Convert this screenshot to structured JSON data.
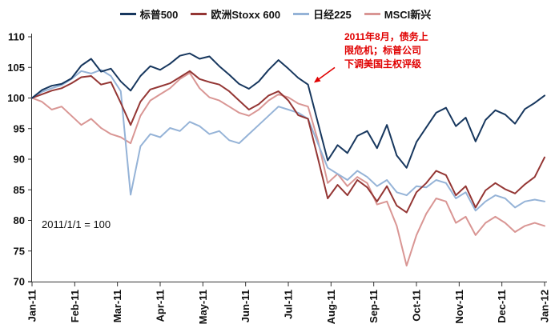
{
  "chart_data": {
    "type": "line",
    "title": "",
    "note": "2011/1/1 = 100",
    "ylim": [
      70,
      110
    ],
    "y_ticks": [
      70,
      75,
      80,
      85,
      90,
      95,
      100,
      105,
      110
    ],
    "x_tick_labels": [
      "Jan-11",
      "Feb-11",
      "Mar-11",
      "Apr-11",
      "May-11",
      "Jun-11",
      "Jul-11",
      "Aug-11",
      "Sep-11",
      "Oct-11",
      "Nov-11",
      "Dec-11",
      "Jan-12"
    ],
    "grid": "off",
    "legend_position": "top-center",
    "annotation": {
      "lines": [
        "2011年8月，债务上",
        "限危机；标普公司",
        "下调美国主权评级"
      ],
      "color": "#e00000",
      "arrow_target": {
        "x_index": 28.6,
        "value": 102.5
      }
    },
    "series": [
      {
        "name": "标普500",
        "color": "#17375e",
        "values": [
          100,
          101.3,
          102.0,
          102.3,
          103.2,
          105.3,
          106.4,
          104.3,
          104.8,
          102.7,
          101.2,
          103.6,
          105.2,
          104.6,
          105.6,
          106.9,
          107.3,
          106.4,
          106.8,
          105.2,
          103.8,
          102.3,
          101.5,
          102.7,
          104.6,
          106.2,
          104.8,
          103.3,
          102.2,
          96.0,
          89.8,
          92.3,
          91.0,
          93.8,
          94.6,
          91.8,
          95.6,
          90.6,
          88.6,
          92.8,
          95.2,
          97.6,
          98.4,
          95.4,
          96.8,
          92.9,
          96.4,
          98.0,
          97.3,
          95.8,
          98.2,
          99.2,
          100.4
        ]
      },
      {
        "name": "欧洲Stoxx 600",
        "color": "#943634",
        "values": [
          100,
          100.6,
          101.2,
          101.6,
          102.4,
          103.4,
          103.6,
          102.2,
          102.6,
          99.2,
          95.6,
          99.4,
          101.4,
          101.9,
          102.4,
          103.4,
          104.4,
          103.1,
          102.6,
          102.2,
          101.1,
          99.6,
          98.1,
          99.0,
          100.4,
          101.1,
          99.6,
          97.2,
          96.6,
          90.2,
          83.6,
          85.8,
          84.1,
          86.6,
          85.4,
          83.1,
          85.6,
          82.4,
          81.3,
          84.6,
          86.1,
          88.1,
          87.4,
          84.1,
          85.6,
          82.1,
          84.9,
          86.1,
          85.1,
          84.4,
          85.9,
          87.1,
          90.3
        ]
      },
      {
        "name": "日经225",
        "color": "#95b3d7",
        "values": [
          100,
          101.0,
          101.6,
          102.1,
          103.1,
          104.4,
          104.0,
          104.6,
          103.6,
          101.1,
          84.2,
          92.1,
          94.1,
          93.6,
          95.1,
          94.6,
          96.1,
          95.4,
          94.1,
          94.6,
          93.1,
          92.6,
          94.1,
          95.6,
          97.1,
          98.6,
          98.1,
          97.6,
          96.6,
          92.6,
          88.6,
          87.6,
          86.6,
          88.1,
          87.1,
          85.6,
          86.6,
          84.6,
          84.1,
          85.6,
          85.4,
          86.6,
          86.1,
          83.6,
          84.6,
          81.6,
          83.1,
          84.1,
          83.6,
          82.1,
          83.1,
          83.4,
          83.1
        ]
      },
      {
        "name": "MSCI新兴",
        "color": "#d99694",
        "values": [
          100,
          99.4,
          98.1,
          98.6,
          97.1,
          95.6,
          96.6,
          95.1,
          94.1,
          93.6,
          92.6,
          97.1,
          99.6,
          100.6,
          101.6,
          103.1,
          104.1,
          101.6,
          100.1,
          99.6,
          98.6,
          97.6,
          97.1,
          98.1,
          99.6,
          100.6,
          100.1,
          99.1,
          98.6,
          93.1,
          86.1,
          87.6,
          85.6,
          87.1,
          86.1,
          82.6,
          83.1,
          79.1,
          72.6,
          77.6,
          81.1,
          83.6,
          83.1,
          79.6,
          80.6,
          77.6,
          79.6,
          80.6,
          79.6,
          78.1,
          79.1,
          79.6,
          79.1
        ]
      }
    ]
  }
}
